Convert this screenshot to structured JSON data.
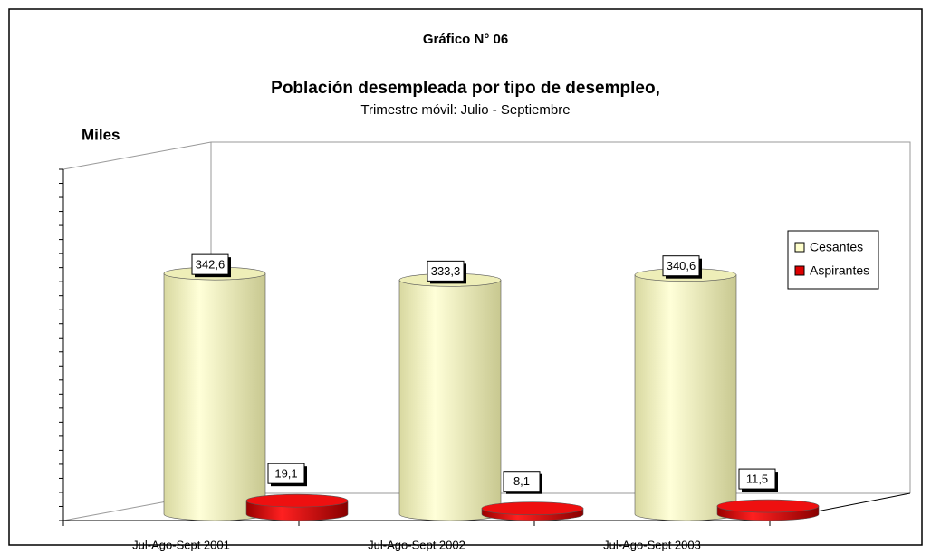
{
  "chart_data": {
    "type": "bar3d",
    "title": "Gráfico N° 06",
    "subtitle": "Población desempleada por tipo de desempleo,",
    "subtitle2": "Trimestre móvil: Julio - Septiembre",
    "y_label": "Miles",
    "categories": [
      "Jul-Ago-Sept 2001",
      "Jul-Ago-Sept 2002",
      "Jul-Ago-Sept 2003"
    ],
    "series": [
      {
        "name": "Cesantes",
        "color": "#ffffcc",
        "values": [
          342.6,
          333.3,
          340.6
        ],
        "value_labels": [
          "342,6",
          "333,3",
          "340,6"
        ]
      },
      {
        "name": "Aspirantes",
        "color": "#dd0000",
        "values": [
          19.1,
          8.1,
          11.5
        ],
        "value_labels": [
          "19,1",
          "8,1",
          "11,5"
        ]
      }
    ],
    "ylim": [
      0,
      500
    ],
    "yticks": [
      0,
      20,
      40,
      60,
      80,
      100,
      120,
      140,
      160,
      180,
      200,
      220,
      240,
      260,
      280,
      300,
      320,
      340,
      360,
      380,
      400,
      420,
      440,
      460,
      480,
      500
    ],
    "legend": "right"
  }
}
